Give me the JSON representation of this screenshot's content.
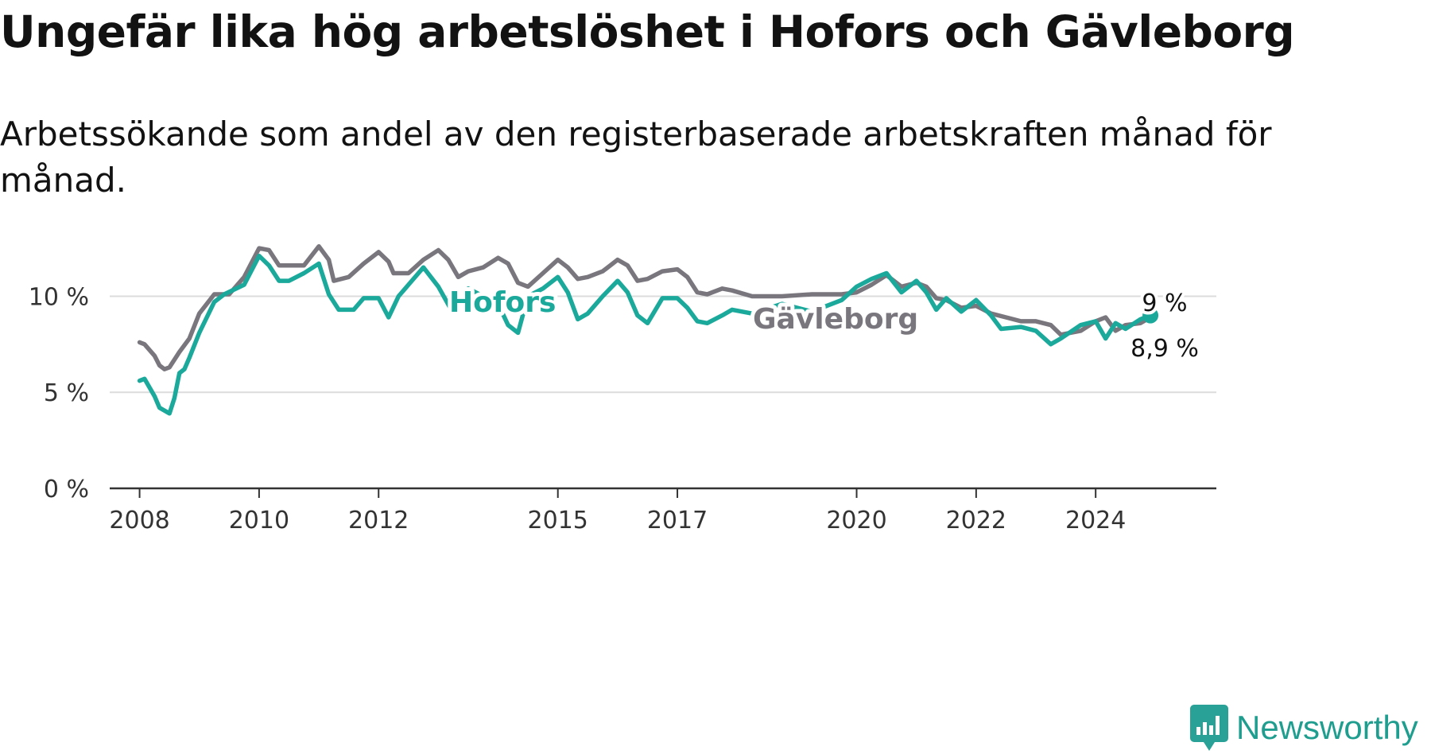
{
  "title": "Ungefär lika hög arbetslöshet i Hofors och Gävleborg",
  "subtitle": "Arbetssökande som andel av den registerbaserade arbetskraften månad för månad.",
  "brand": {
    "name": "Newsworthy",
    "icon": "newsworthy-logo-icon",
    "color": "#2aa197"
  },
  "chart_data": {
    "type": "line",
    "title": "Ungefär lika hög arbetslöshet i Hofors och Gävleborg",
    "subtitle": "Arbetssökande som andel av den registerbaserade arbetskraften månad för månad.",
    "xlabel": "",
    "ylabel": "",
    "x_ticks": [
      "2008",
      "2010",
      "2012",
      "2015",
      "2017",
      "2020",
      "2022",
      "2024"
    ],
    "y_ticks": [
      "0 %",
      "5 %",
      "10 %"
    ],
    "ylim": [
      0,
      13
    ],
    "grid": true,
    "legend": "inline labels",
    "series": [
      {
        "name": "Gävleborg",
        "color": "#7a767e",
        "end_label": "8,9 %",
        "points": [
          [
            "2008-01",
            7.6
          ],
          [
            "2008-02",
            7.5
          ],
          [
            "2008-04",
            6.9
          ],
          [
            "2008-05",
            6.4
          ],
          [
            "2008-06",
            6.2
          ],
          [
            "2008-07",
            6.3
          ],
          [
            "2008-09",
            7.1
          ],
          [
            "2008-11",
            7.8
          ],
          [
            "2009-01",
            9.1
          ],
          [
            "2009-04",
            10.1
          ],
          [
            "2009-07",
            10.1
          ],
          [
            "2009-10",
            11.0
          ],
          [
            "2010-01",
            12.5
          ],
          [
            "2010-03",
            12.4
          ],
          [
            "2010-05",
            11.6
          ],
          [
            "2010-07",
            11.6
          ],
          [
            "2010-10",
            11.6
          ],
          [
            "2011-01",
            12.6
          ],
          [
            "2011-03",
            11.9
          ],
          [
            "2011-04",
            10.8
          ],
          [
            "2011-07",
            11.0
          ],
          [
            "2011-10",
            11.7
          ],
          [
            "2012-01",
            12.3
          ],
          [
            "2012-03",
            11.8
          ],
          [
            "2012-04",
            11.2
          ],
          [
            "2012-07",
            11.2
          ],
          [
            "2012-10",
            11.9
          ],
          [
            "2013-01",
            12.4
          ],
          [
            "2013-03",
            11.9
          ],
          [
            "2013-05",
            11.0
          ],
          [
            "2013-07",
            11.3
          ],
          [
            "2013-10",
            11.5
          ],
          [
            "2014-01",
            12.0
          ],
          [
            "2014-03",
            11.7
          ],
          [
            "2014-05",
            10.7
          ],
          [
            "2014-07",
            10.5
          ],
          [
            "2014-10",
            11.2
          ],
          [
            "2015-01",
            11.9
          ],
          [
            "2015-03",
            11.5
          ],
          [
            "2015-05",
            10.9
          ],
          [
            "2015-07",
            11.0
          ],
          [
            "2015-10",
            11.3
          ],
          [
            "2016-01",
            11.9
          ],
          [
            "2016-03",
            11.6
          ],
          [
            "2016-05",
            10.8
          ],
          [
            "2016-07",
            10.9
          ],
          [
            "2016-10",
            11.3
          ],
          [
            "2017-01",
            11.4
          ],
          [
            "2017-03",
            11.0
          ],
          [
            "2017-05",
            10.2
          ],
          [
            "2017-07",
            10.1
          ],
          [
            "2017-10",
            10.4
          ],
          [
            "2017-12",
            10.3
          ],
          [
            "2018-04",
            10.0
          ],
          [
            "2018-10",
            10.0
          ],
          [
            "2019-04",
            10.1
          ],
          [
            "2019-10",
            10.1
          ],
          [
            "2020-01",
            10.2
          ],
          [
            "2020-04",
            10.6
          ],
          [
            "2020-07",
            11.1
          ],
          [
            "2020-10",
            10.5
          ],
          [
            "2021-01",
            10.7
          ],
          [
            "2021-03",
            10.5
          ],
          [
            "2021-05",
            9.9
          ],
          [
            "2021-07",
            9.8
          ],
          [
            "2021-10",
            9.4
          ],
          [
            "2022-01",
            9.5
          ],
          [
            "2022-04",
            9.1
          ],
          [
            "2022-07",
            8.9
          ],
          [
            "2022-10",
            8.7
          ],
          [
            "2023-01",
            8.7
          ],
          [
            "2023-04",
            8.5
          ],
          [
            "2023-06",
            8.0
          ],
          [
            "2023-10",
            8.2
          ],
          [
            "2024-01",
            8.7
          ],
          [
            "2024-03",
            8.9
          ],
          [
            "2024-05",
            8.2
          ],
          [
            "2024-07",
            8.5
          ],
          [
            "2024-10",
            8.6
          ],
          [
            "2024-12",
            8.9
          ]
        ]
      },
      {
        "name": "Hofors",
        "color": "#1ba99c",
        "end_label": "9 %",
        "points": [
          [
            "2008-01",
            5.6
          ],
          [
            "2008-02",
            5.7
          ],
          [
            "2008-04",
            4.8
          ],
          [
            "2008-05",
            4.2
          ],
          [
            "2008-07",
            3.9
          ],
          [
            "2008-08",
            4.7
          ],
          [
            "2008-09",
            6.0
          ],
          [
            "2008-10",
            6.2
          ],
          [
            "2008-11",
            6.8
          ],
          [
            "2009-01",
            8.1
          ],
          [
            "2009-04",
            9.7
          ],
          [
            "2009-06",
            10.1
          ],
          [
            "2009-10",
            10.6
          ],
          [
            "2010-01",
            12.1
          ],
          [
            "2010-03",
            11.6
          ],
          [
            "2010-05",
            10.8
          ],
          [
            "2010-07",
            10.8
          ],
          [
            "2010-10",
            11.2
          ],
          [
            "2011-01",
            11.7
          ],
          [
            "2011-03",
            10.1
          ],
          [
            "2011-05",
            9.3
          ],
          [
            "2011-08",
            9.3
          ],
          [
            "2011-10",
            9.9
          ],
          [
            "2012-01",
            9.9
          ],
          [
            "2012-03",
            8.9
          ],
          [
            "2012-05",
            10.0
          ],
          [
            "2012-07",
            10.6
          ],
          [
            "2012-10",
            11.5
          ],
          [
            "2013-01",
            10.5
          ],
          [
            "2013-04",
            9.1
          ],
          [
            "2013-07",
            10.4
          ],
          [
            "2013-10",
            10.0
          ],
          [
            "2014-01",
            9.6
          ],
          [
            "2014-03",
            8.5
          ],
          [
            "2014-05",
            8.1
          ],
          [
            "2014-07",
            10.0
          ],
          [
            "2014-10",
            10.4
          ],
          [
            "2015-01",
            11.0
          ],
          [
            "2015-03",
            10.2
          ],
          [
            "2015-05",
            8.8
          ],
          [
            "2015-07",
            9.1
          ],
          [
            "2015-10",
            10.0
          ],
          [
            "2016-01",
            10.8
          ],
          [
            "2016-03",
            10.2
          ],
          [
            "2016-05",
            9.0
          ],
          [
            "2016-07",
            8.6
          ],
          [
            "2016-10",
            9.9
          ],
          [
            "2017-01",
            9.9
          ],
          [
            "2017-03",
            9.4
          ],
          [
            "2017-05",
            8.7
          ],
          [
            "2017-07",
            8.6
          ],
          [
            "2017-10",
            9.0
          ],
          [
            "2017-12",
            9.3
          ],
          [
            "2018-04",
            9.1
          ],
          [
            "2018-10",
            9.6
          ],
          [
            "2019-04",
            9.2
          ],
          [
            "2019-10",
            9.8
          ],
          [
            "2020-01",
            10.5
          ],
          [
            "2020-04",
            10.9
          ],
          [
            "2020-07",
            11.2
          ],
          [
            "2020-10",
            10.2
          ],
          [
            "2021-01",
            10.8
          ],
          [
            "2021-03",
            10.2
          ],
          [
            "2021-05",
            9.3
          ],
          [
            "2021-07",
            9.9
          ],
          [
            "2021-10",
            9.2
          ],
          [
            "2022-01",
            9.8
          ],
          [
            "2022-04",
            9.0
          ],
          [
            "2022-06",
            8.3
          ],
          [
            "2022-10",
            8.4
          ],
          [
            "2023-01",
            8.2
          ],
          [
            "2023-04",
            7.5
          ],
          [
            "2023-06",
            7.8
          ],
          [
            "2023-10",
            8.5
          ],
          [
            "2024-01",
            8.7
          ],
          [
            "2024-03",
            7.8
          ],
          [
            "2024-05",
            8.6
          ],
          [
            "2024-07",
            8.3
          ],
          [
            "2024-10",
            8.8
          ],
          [
            "2024-12",
            9.0
          ]
        ]
      }
    ]
  }
}
